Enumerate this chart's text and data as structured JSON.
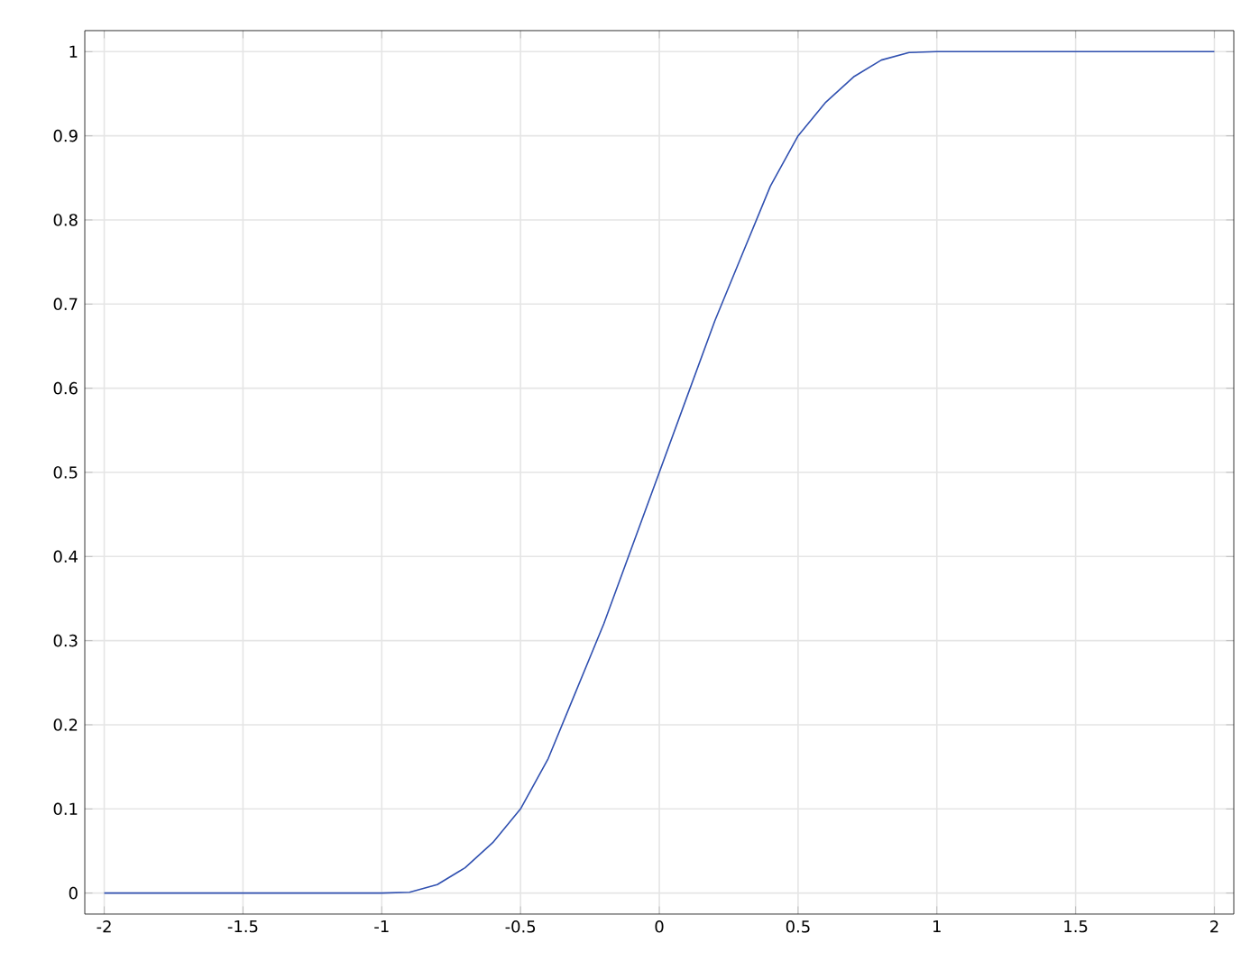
{
  "chart_data": {
    "type": "line",
    "x": [
      -2,
      -1.5,
      -1,
      -0.9,
      -0.8,
      -0.7,
      -0.6,
      -0.5,
      -0.4,
      -0.3,
      -0.2,
      -0.1,
      0,
      0.1,
      0.2,
      0.3,
      0.4,
      0.5,
      0.6,
      0.7,
      0.8,
      0.9,
      1,
      1.5,
      2
    ],
    "series": [
      {
        "color": "#3050b0",
        "values": [
          0,
          0,
          0,
          0.001,
          0.01,
          0.03,
          0.06,
          0.1,
          0.16,
          0.24,
          0.32,
          0.41,
          0.5,
          0.59,
          0.68,
          0.76,
          0.84,
          0.9,
          0.94,
          0.97,
          0.99,
          0.999,
          1,
          1,
          1
        ]
      }
    ],
    "xlim": [
      -2.07,
      2.07
    ],
    "ylim": [
      -0.025,
      1.025
    ],
    "xticks": [
      -2,
      -1.5,
      -1,
      -0.5,
      0,
      0.5,
      1,
      1.5,
      2
    ],
    "yticks": [
      0,
      0.1,
      0.2,
      0.3,
      0.4,
      0.5,
      0.6,
      0.7,
      0.8,
      0.9,
      1
    ],
    "grid": true,
    "marker": "none",
    "line_style": "solid"
  }
}
